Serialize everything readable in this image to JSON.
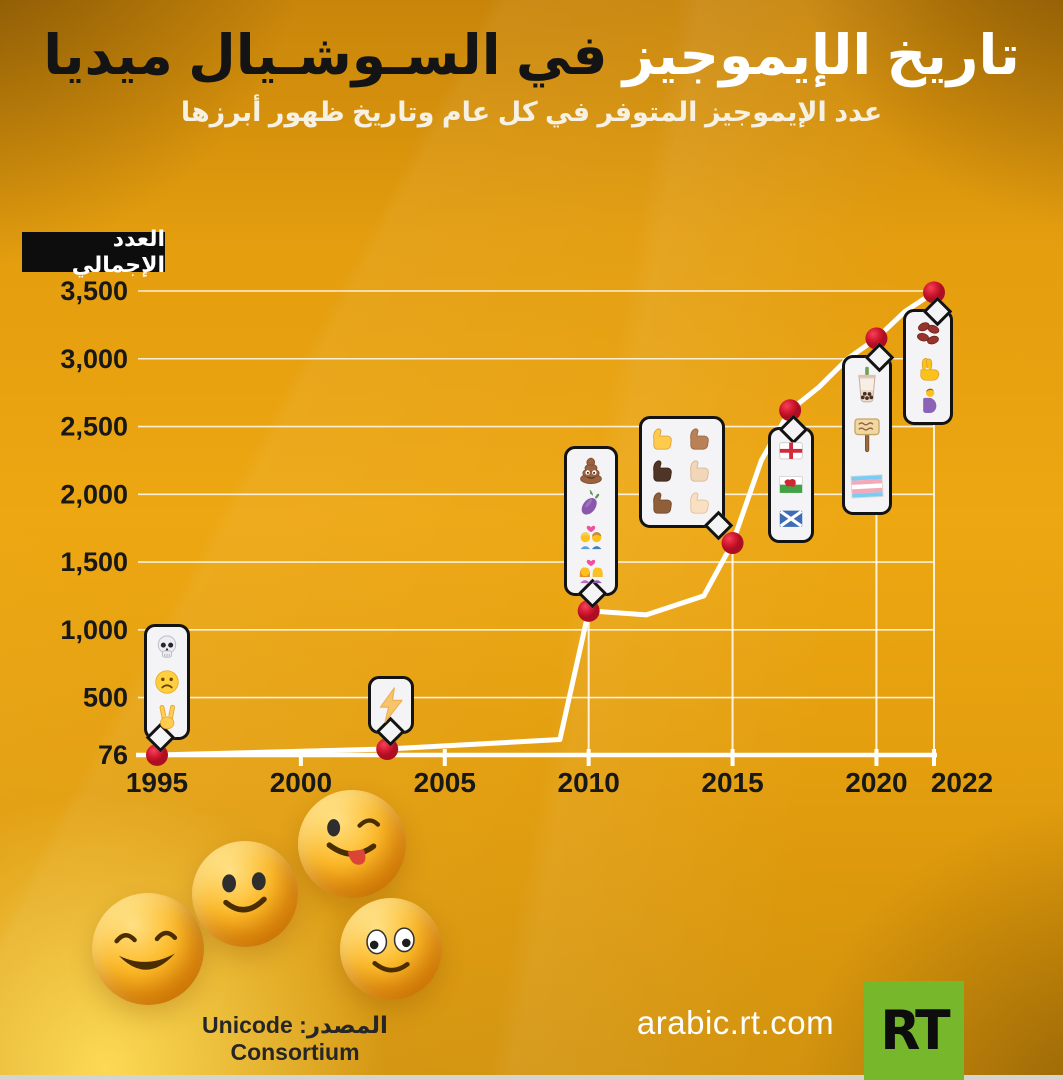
{
  "header": {
    "title_white": "تاريخ الإيموجيز",
    "title_black": "في السـوشـيال ميديا",
    "subtitle": "عدد الإيموجيز المتوفر في كل عام وتاريخ ظهور أبرزها"
  },
  "chart_data": {
    "type": "line",
    "title": "تاريخ الإيموجيز في السـوشـيال ميديا",
    "subtitle": "عدد الإيموجيز المتوفر في كل عام وتاريخ ظهور أبرزها",
    "xlabel": "",
    "ylabel": "العدد الإجمالي",
    "xlim": [
      1995,
      2022
    ],
    "ylim": [
      76,
      3500
    ],
    "grid": true,
    "legend": null,
    "yticks": [
      {
        "value": 3500,
        "label": "3,500"
      },
      {
        "value": 3000,
        "label": "3,000"
      },
      {
        "value": 2500,
        "label": "2,500"
      },
      {
        "value": 2000,
        "label": "2,000"
      },
      {
        "value": 1500,
        "label": "1,500"
      },
      {
        "value": 1000,
        "label": "1,000"
      },
      {
        "value": 500,
        "label": "500"
      },
      {
        "value": 76,
        "label": "76"
      }
    ],
    "xticks": [
      {
        "year": 1995,
        "label": "1995"
      },
      {
        "year": 2000,
        "label": "2000"
      },
      {
        "year": 2005,
        "label": "2005"
      },
      {
        "year": 2010,
        "label": "2010"
      },
      {
        "year": 2015,
        "label": "2015"
      },
      {
        "year": 2020,
        "label": "2020"
      },
      {
        "year": 2022,
        "label": "2022"
      }
    ],
    "series": [
      {
        "year": 1995,
        "value": 76,
        "dot": true
      },
      {
        "year": 2003,
        "value": 120,
        "dot": true
      },
      {
        "year": 2009,
        "value": 190,
        "dot": false
      },
      {
        "year": 2010,
        "value": 1140,
        "dot": true
      },
      {
        "year": 2012,
        "value": 1110,
        "dot": false
      },
      {
        "year": 2014,
        "value": 1250,
        "dot": false
      },
      {
        "year": 2015,
        "value": 1640,
        "dot": true
      },
      {
        "year": 2016,
        "value": 2250,
        "dot": false
      },
      {
        "year": 2017,
        "value": 2620,
        "dot": true
      },
      {
        "year": 2018,
        "value": 2790,
        "dot": false
      },
      {
        "year": 2019,
        "value": 3000,
        "dot": false
      },
      {
        "year": 2020,
        "value": 3150,
        "dot": true
      },
      {
        "year": 2021,
        "value": 3350,
        "dot": false
      },
      {
        "year": 2022,
        "value": 3490,
        "dot": true
      }
    ],
    "dropline_years": [
      2010,
      2015,
      2020,
      2022
    ],
    "callouts": [
      {
        "year": 1995,
        "position": "above",
        "emojis": [
          "skull",
          "frowning-face",
          "victory-hand"
        ]
      },
      {
        "year": 2003,
        "position": "above",
        "emojis": [
          "high-voltage"
        ]
      },
      {
        "year": 2010,
        "position": "above",
        "emojis": [
          "pile-of-poo",
          "eggplant",
          "kiss-man-woman",
          "kiss-woman-woman"
        ]
      },
      {
        "year": 2015,
        "position": "above",
        "emojis": [
          "thumbs-up-yellow",
          "thumbs-up-medium",
          "thumbs-up-dark",
          "thumbs-up-light",
          "thumbs-up-medium-dark",
          "thumbs-up-medium-light"
        ]
      },
      {
        "year": 2017,
        "position": "below",
        "emojis": [
          "flag-england",
          "flag-wales",
          "flag-scotland"
        ]
      },
      {
        "year": 2020,
        "position": "below",
        "emojis": [
          "bubble-tea",
          "placard",
          "transgender-flag"
        ]
      },
      {
        "year": 2022,
        "position": "below",
        "emojis": [
          "beans",
          "crossed-fingers",
          "pregnant-person"
        ]
      }
    ]
  },
  "footer": {
    "source_label": "المصدر:",
    "source_value": "Unicode Consortium",
    "site": "arabic.rt.com",
    "logo_text": "RT"
  },
  "colors": {
    "dot_red": "#d41830",
    "line_white": "#ffffff",
    "rt_green": "#77b72c",
    "background_orange": "#eda712",
    "label_box_black": "#0d0d0d"
  }
}
